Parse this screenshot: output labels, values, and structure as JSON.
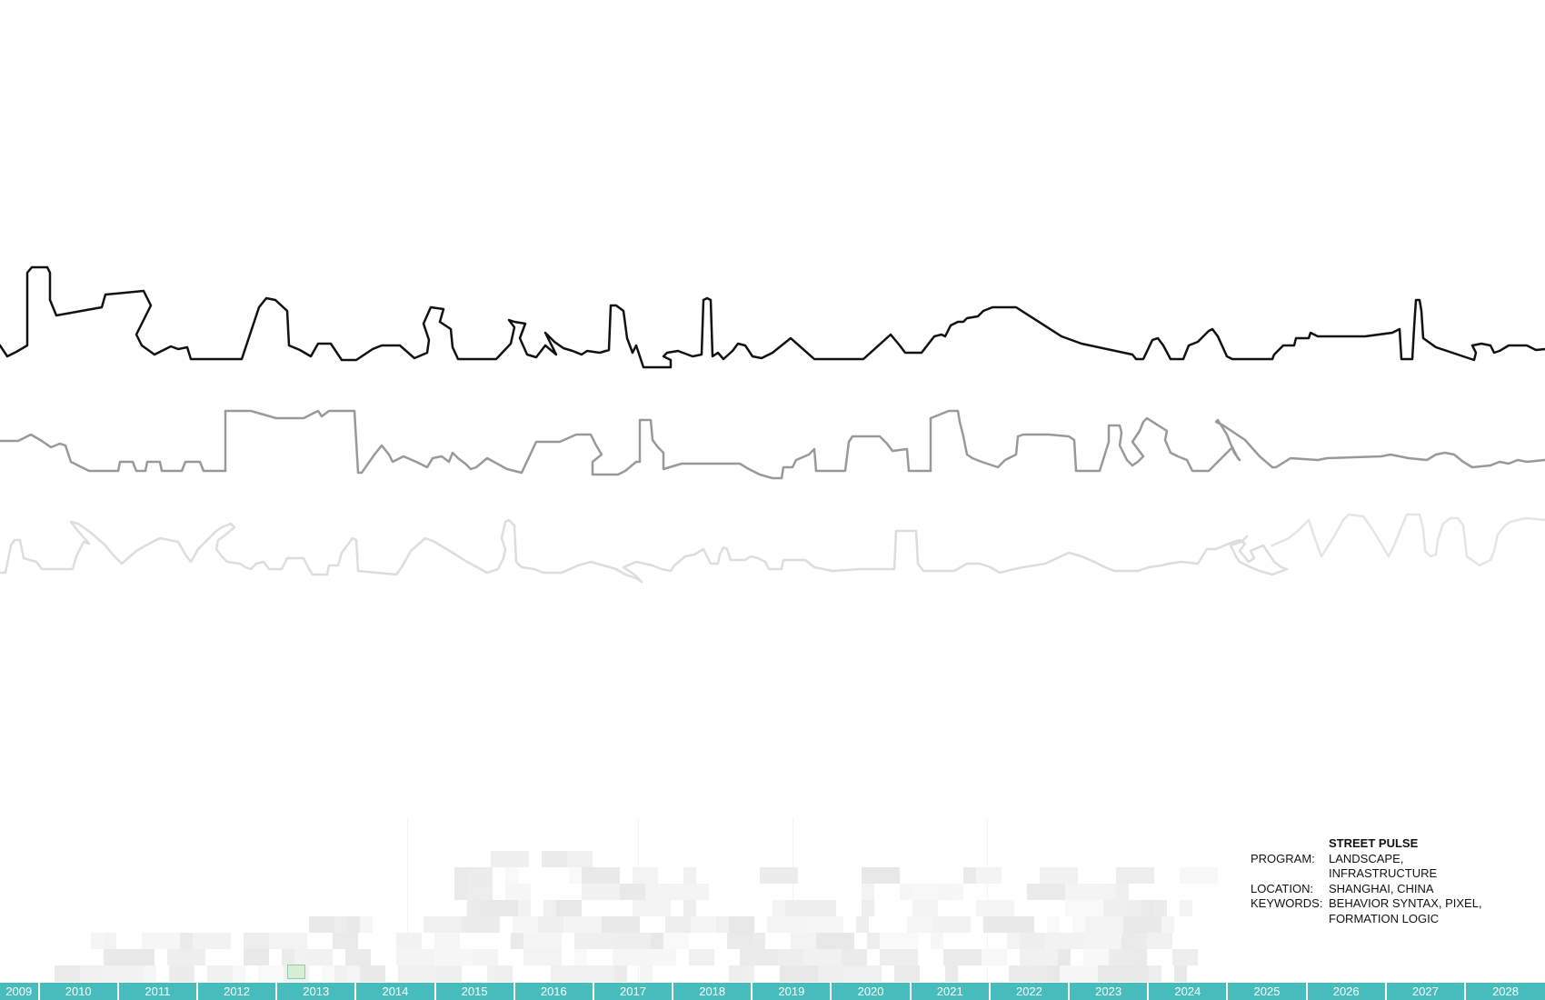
{
  "project": {
    "title": "STREET PULSE",
    "program_label": "PROGRAM:",
    "program": "LANDSCAPE, INFRASTRUCTURE",
    "location_label": "LOCATION:",
    "location": "SHANGHAI, CHINA",
    "keywords_label": "KEYWORDS:",
    "keywords_line1": "BEHAVIOR SYNTAX, PIXEL,",
    "keywords_line2": "FORMATION LOGIC"
  },
  "timeline": {
    "years": [
      "2009",
      "2010",
      "2011",
      "2012",
      "2013",
      "2014",
      "2015",
      "2016",
      "2017",
      "2018",
      "2019",
      "2020",
      "2021",
      "2022",
      "2023",
      "2024",
      "2025",
      "2026",
      "2027",
      "2028"
    ],
    "selected_year": "2013"
  },
  "colors": {
    "timeline_bar": "#47bcbd",
    "line_primary": "#111111",
    "line_secondary": "#999999",
    "line_tertiary": "#dddddd",
    "marker_fill": "#d7efd2"
  }
}
